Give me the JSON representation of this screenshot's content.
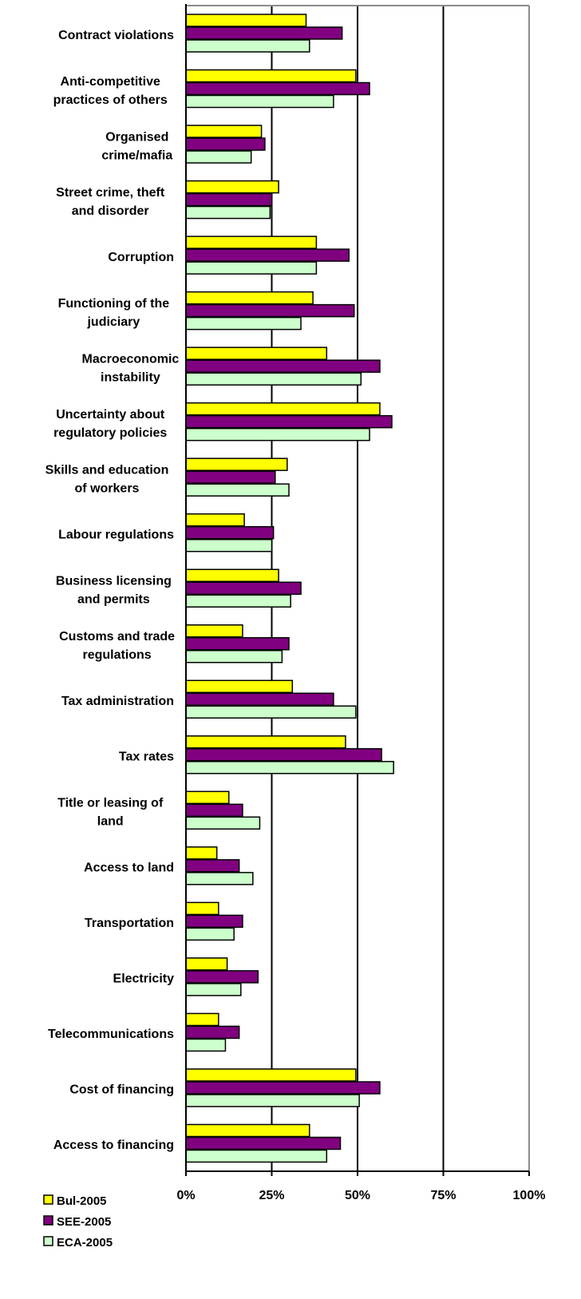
{
  "chart_data": {
    "type": "bar",
    "orientation": "horizontal",
    "title": "",
    "xlabel": "",
    "ylabel": "",
    "xlim": [
      0,
      100
    ],
    "x_tick_labels": [
      "0%",
      "25%",
      "50%",
      "75%",
      "100%"
    ],
    "grid": true,
    "legend_position": "bottom-left",
    "categories": [
      "Contract violations",
      "Anti-competitive practices of others",
      "Organised crime/mafia",
      "Street crime, theft and disorder",
      "Corruption",
      "Functioning of the judiciary",
      "Macroeconomic instability",
      "Uncertainty about regulatory policies",
      "Skills and education of workers",
      "Labour regulations",
      "Business licensing and permits",
      "Customs and trade regulations",
      "Tax administration",
      "Tax rates",
      "Title or leasing of land",
      "Access to land",
      "Transportation",
      "Electricity",
      "Telecommunications",
      "Cost of financing",
      "Access to financing"
    ],
    "category_lines": [
      [
        "Contract violations"
      ],
      [
        "Anti-competitive",
        "practices of others"
      ],
      [
        "Organised",
        "crime/mafia"
      ],
      [
        "Street crime, theft",
        "and disorder"
      ],
      [
        "Corruption"
      ],
      [
        "Functioning of the",
        "judiciary"
      ],
      [
        "Macroeconomic",
        "instability"
      ],
      [
        "Uncertainty about",
        "regulatory policies"
      ],
      [
        "Skills and education",
        "of workers"
      ],
      [
        "Labour regulations"
      ],
      [
        "Business licensing",
        "and permits"
      ],
      [
        "Customs and trade",
        "regulations"
      ],
      [
        "Tax administration"
      ],
      [
        "Tax rates"
      ],
      [
        "Title or leasing of",
        "land"
      ],
      [
        "Access to land"
      ],
      [
        "Transportation"
      ],
      [
        "Electricity"
      ],
      [
        "Telecommunications"
      ],
      [
        "Cost of financing"
      ],
      [
        "Access to financing"
      ]
    ],
    "series": [
      {
        "name": "Bul-2005",
        "color": "#ffff00",
        "values": [
          35,
          49.5,
          22,
          27,
          38,
          37,
          41,
          56.5,
          29.5,
          17,
          27,
          16.5,
          31,
          46.5,
          12.5,
          9,
          9.5,
          12,
          9.5,
          49.5,
          36
        ]
      },
      {
        "name": "SEE-2005",
        "color": "#800080",
        "values": [
          45.5,
          53.5,
          23,
          25,
          47.5,
          49,
          56.5,
          60,
          26,
          25.5,
          33.5,
          30,
          43,
          57,
          16.5,
          15.5,
          16.5,
          21,
          15.5,
          56.5,
          45
        ]
      },
      {
        "name": "ECA-2005",
        "color": "#ccffcc",
        "values": [
          36,
          43,
          19,
          24.5,
          38,
          33.5,
          51,
          53.5,
          30,
          25,
          30.5,
          28,
          49.5,
          60.5,
          21.5,
          19.5,
          14,
          16,
          11.5,
          50.5,
          41
        ]
      }
    ]
  }
}
